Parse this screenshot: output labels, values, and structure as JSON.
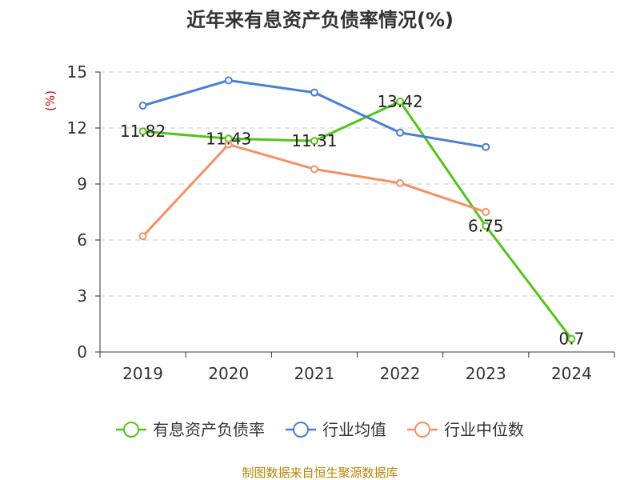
{
  "chart_data": {
    "type": "line",
    "title": "近年来有息资产负债率情况(%)",
    "ylabel": "(%)",
    "xlabel": "",
    "categories": [
      "2019",
      "2020",
      "2021",
      "2022",
      "2023",
      "2024"
    ],
    "ylim": [
      0,
      15
    ],
    "yticks": [
      0,
      3,
      6,
      9,
      12,
      15
    ],
    "grid": true,
    "legend_position": "bottom",
    "series": [
      {
        "name": "有息资产负债率",
        "color": "#52c41a",
        "values": [
          11.82,
          11.43,
          11.31,
          13.42,
          6.75,
          0.7
        ],
        "labels": [
          "11.82",
          "11.43",
          "11.31",
          "13.42",
          "6.75",
          "0.7"
        ]
      },
      {
        "name": "行业均值",
        "color": "#4a7fd8",
        "values": [
          13.2,
          14.55,
          13.9,
          11.75,
          10.98,
          null
        ]
      },
      {
        "name": "行业中位数",
        "color": "#f59064",
        "values": [
          6.2,
          11.12,
          9.8,
          9.05,
          7.5,
          null
        ]
      }
    ]
  },
  "colors": {
    "axis": "#333333",
    "grid": "#c8c8c8",
    "unit": "#cc0000",
    "source": "#b8860b"
  },
  "source": "制图数据来自恒生聚源数据库"
}
